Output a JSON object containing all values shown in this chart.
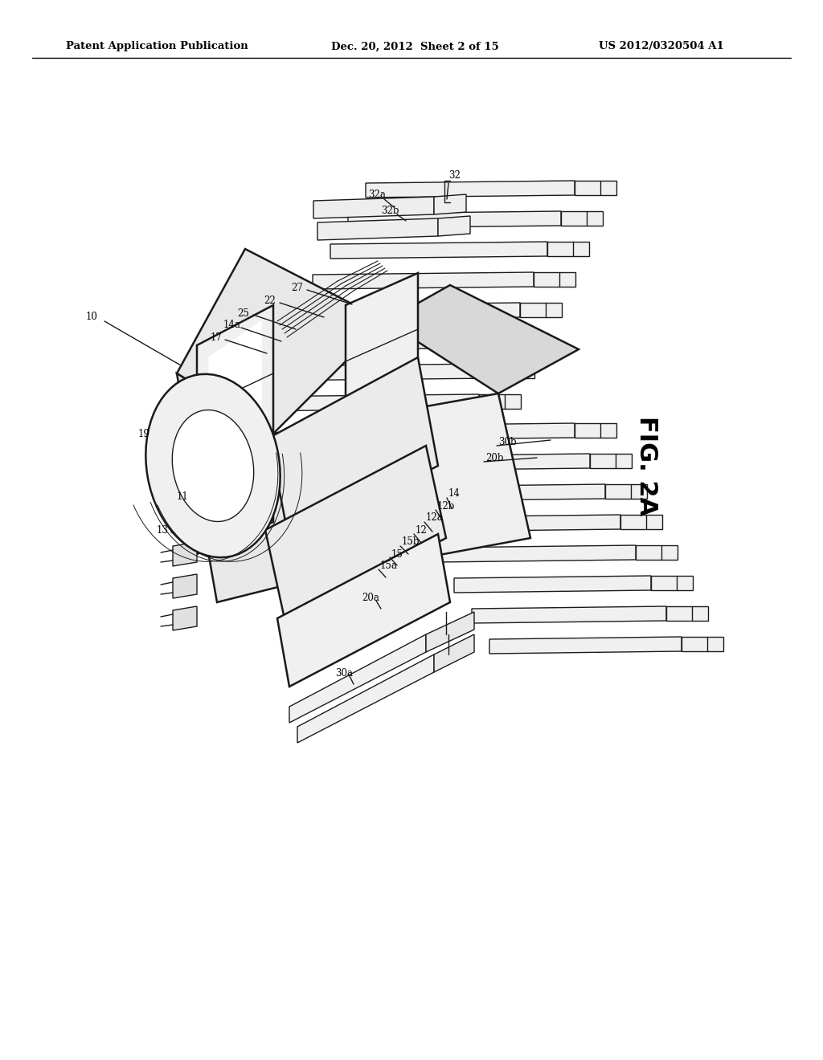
{
  "bg_color": "#ffffff",
  "line_color": "#1a1a1a",
  "header_left": "Patent Application Publication",
  "header_mid": "Dec. 20, 2012  Sheet 2 of 15",
  "header_right": "US 2012/0320504 A1",
  "fig_label": "FIG. 2A",
  "lw": 1.0,
  "lw_thick": 1.8
}
